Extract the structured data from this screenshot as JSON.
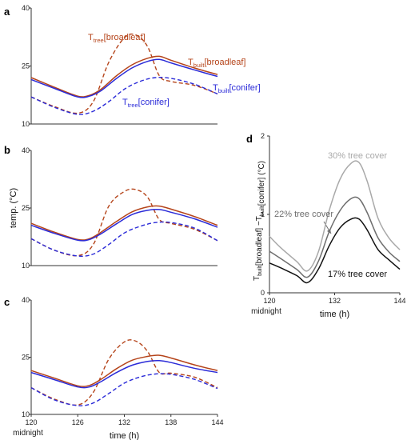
{
  "colors": {
    "broadleaf": "#b5441a",
    "conifer": "#2b2bd8",
    "gray_light": "#a9a9a9",
    "gray_mid": "#6e6e6e",
    "black": "#111111"
  },
  "chart_data": [
    {
      "panel": "a",
      "type": "line",
      "ylim": [
        10,
        40
      ],
      "yticks": [
        "40",
        "25",
        "10"
      ],
      "xlim": [
        120,
        144
      ],
      "series": [
        {
          "name": "T_tree[broadleaf]",
          "label_main": "T",
          "label_sub": "tree",
          "label_tail": "[broadleaf]",
          "style": "dashed",
          "color_key": "broadleaf",
          "x": [
            120,
            123,
            126,
            128,
            130,
            132,
            133.5,
            135,
            136.5,
            138,
            141,
            144
          ],
          "y": [
            17.0,
            14.5,
            12.8,
            15.8,
            26.0,
            32.3,
            33.0,
            30.0,
            22.5,
            21.0,
            20.0,
            17.8
          ]
        },
        {
          "name": "T_tree[conifer]",
          "label_main": "T",
          "label_sub": "tree",
          "label_tail": "[conifer]",
          "style": "dashed",
          "color_key": "conifer",
          "x": [
            120,
            123,
            126,
            128,
            130,
            132,
            134,
            136,
            138,
            141,
            144
          ],
          "y": [
            17.0,
            14.3,
            12.5,
            13.3,
            15.8,
            19.0,
            21.0,
            22.0,
            21.8,
            20.3,
            17.8
          ]
        },
        {
          "name": "T_built[broadleaf]",
          "label_main": "T",
          "label_sub": "built",
          "label_tail": "[broadleaf]",
          "style": "solid",
          "color_key": "broadleaf",
          "x": [
            120,
            123,
            126,
            127.5,
            129,
            131,
            133,
            135,
            136.5,
            138,
            141,
            144
          ],
          "y": [
            22.0,
            19.5,
            17.2,
            17.4,
            19.0,
            22.5,
            25.3,
            27.0,
            27.5,
            26.5,
            24.5,
            22.8
          ]
        },
        {
          "name": "T_built[conifer]",
          "label_main": "T",
          "label_sub": "built",
          "label_tail": "[conifer]",
          "style": "solid",
          "color_key": "conifer",
          "x": [
            120,
            123,
            126,
            127.5,
            129,
            131,
            133,
            135,
            136.5,
            138,
            141,
            144
          ],
          "y": [
            21.5,
            19.2,
            17.0,
            17.2,
            18.6,
            21.8,
            24.5,
            26.2,
            26.7,
            25.8,
            24.0,
            22.3
          ]
        }
      ]
    },
    {
      "panel": "b",
      "type": "line",
      "ylim": [
        10,
        40
      ],
      "yticks": [
        "40",
        "25",
        "10"
      ],
      "ylabel": "temp. (°C)",
      "xlim": [
        120,
        144
      ],
      "series": [
        {
          "color_key": "broadleaf",
          "style": "dashed",
          "x": [
            120,
            123,
            126,
            128,
            130,
            132,
            133.5,
            135,
            136.5,
            138,
            141,
            144
          ],
          "y": [
            17.0,
            14.0,
            12.6,
            15.5,
            25.5,
            29.3,
            29.8,
            27.8,
            22.0,
            21.0,
            19.5,
            16.5
          ]
        },
        {
          "color_key": "conifer",
          "style": "dashed",
          "x": [
            120,
            123,
            126,
            128,
            130,
            132,
            134,
            136,
            138,
            141,
            144
          ],
          "y": [
            17.0,
            14.0,
            12.5,
            13.0,
            15.5,
            18.5,
            20.2,
            21.2,
            21.2,
            19.8,
            16.5
          ]
        },
        {
          "color_key": "broadleaf",
          "style": "solid",
          "x": [
            120,
            123,
            126,
            127.5,
            129,
            131,
            133,
            135,
            136.5,
            138,
            141,
            144
          ],
          "y": [
            21.0,
            18.7,
            16.8,
            17.0,
            18.7,
            21.5,
            24.0,
            25.3,
            25.5,
            24.7,
            22.8,
            20.5
          ]
        },
        {
          "color_key": "conifer",
          "style": "solid",
          "x": [
            120,
            123,
            126,
            127.5,
            129,
            131,
            133,
            135,
            136.5,
            138,
            141,
            144
          ],
          "y": [
            20.5,
            18.4,
            16.6,
            16.8,
            18.3,
            20.9,
            23.3,
            24.4,
            24.6,
            23.9,
            22.2,
            20.0
          ]
        }
      ]
    },
    {
      "panel": "c",
      "type": "line",
      "ylim": [
        10,
        40
      ],
      "yticks": [
        "40",
        "25",
        "10"
      ],
      "xlim": [
        120,
        144
      ],
      "xticks": [
        "120",
        "126",
        "132",
        "138",
        "144"
      ],
      "xtick_values": [
        120,
        126,
        132,
        138,
        144
      ],
      "xnote": "midnight",
      "xlabel": "time (h)",
      "series": [
        {
          "color_key": "broadleaf",
          "style": "dashed",
          "x": [
            120,
            123,
            126,
            128,
            130,
            132,
            133.5,
            135,
            136.5,
            138,
            141,
            144
          ],
          "y": [
            17.0,
            14.0,
            12.5,
            15.8,
            24.5,
            29.0,
            29.2,
            26.5,
            21.0,
            20.8,
            19.8,
            17.0
          ]
        },
        {
          "color_key": "conifer",
          "style": "dashed",
          "x": [
            120,
            123,
            126,
            128,
            130,
            132,
            134,
            136,
            138,
            141,
            144
          ],
          "y": [
            17.0,
            13.8,
            12.3,
            13.0,
            15.5,
            18.2,
            19.8,
            20.6,
            20.5,
            19.2,
            16.8
          ]
        },
        {
          "color_key": "broadleaf",
          "style": "solid",
          "x": [
            120,
            123,
            126,
            127.5,
            129,
            131,
            133,
            135,
            136.5,
            138,
            141,
            144
          ],
          "y": [
            21.5,
            19.5,
            17.5,
            17.6,
            19.2,
            22.0,
            24.2,
            25.2,
            25.5,
            24.8,
            23.0,
            21.5
          ]
        },
        {
          "color_key": "conifer",
          "style": "solid",
          "x": [
            120,
            123,
            126,
            127.5,
            129,
            131,
            133,
            135,
            136.5,
            138,
            141,
            144
          ],
          "y": [
            21.0,
            19.1,
            17.2,
            17.2,
            18.6,
            21.0,
            22.9,
            23.9,
            24.1,
            23.6,
            22.1,
            21.0
          ]
        }
      ]
    },
    {
      "panel": "d",
      "type": "line",
      "ylim": [
        0,
        2
      ],
      "yticks": [
        "2",
        "1",
        "0"
      ],
      "ytick_values": [
        2,
        1,
        0
      ],
      "ylabel_pieces": {
        "t1": "T",
        "s1": "built",
        "m": "[broadleaf] −T",
        "s2": "built",
        "e": "[conifer] (°C)"
      },
      "xlim": [
        120,
        144
      ],
      "xticks": [
        "120",
        "132",
        "144"
      ],
      "xtick_values": [
        120,
        132,
        144
      ],
      "xnote": "midnight",
      "xlabel": "time (h)",
      "series": [
        {
          "name": "30% tree cover",
          "color_key": "gray_light",
          "style": "solid",
          "x": [
            120,
            122,
            125,
            127,
            129,
            131,
            133,
            135,
            136.5,
            138,
            140,
            142,
            144
          ],
          "y": [
            0.72,
            0.58,
            0.4,
            0.28,
            0.52,
            1.05,
            1.45,
            1.65,
            1.66,
            1.42,
            0.95,
            0.7,
            0.55
          ]
        },
        {
          "name": "22% tree cover",
          "color_key": "gray_mid",
          "style": "solid",
          "x": [
            120,
            122,
            125,
            127,
            129,
            131,
            133,
            135,
            136.5,
            138,
            140,
            142,
            144
          ],
          "y": [
            0.53,
            0.44,
            0.3,
            0.2,
            0.4,
            0.78,
            1.05,
            1.2,
            1.2,
            1.02,
            0.7,
            0.52,
            0.4
          ]
        },
        {
          "name": "17% tree cover",
          "color_key": "black",
          "style": "solid",
          "x": [
            120,
            122,
            125,
            127,
            129,
            131,
            133,
            135,
            136.5,
            138,
            140,
            142,
            144
          ],
          "y": [
            0.38,
            0.32,
            0.22,
            0.13,
            0.3,
            0.6,
            0.83,
            0.94,
            0.94,
            0.8,
            0.55,
            0.42,
            0.3
          ]
        }
      ]
    }
  ],
  "labels": {
    "panel_a": "a",
    "panel_b": "b",
    "panel_c": "c",
    "panel_d": "d"
  }
}
